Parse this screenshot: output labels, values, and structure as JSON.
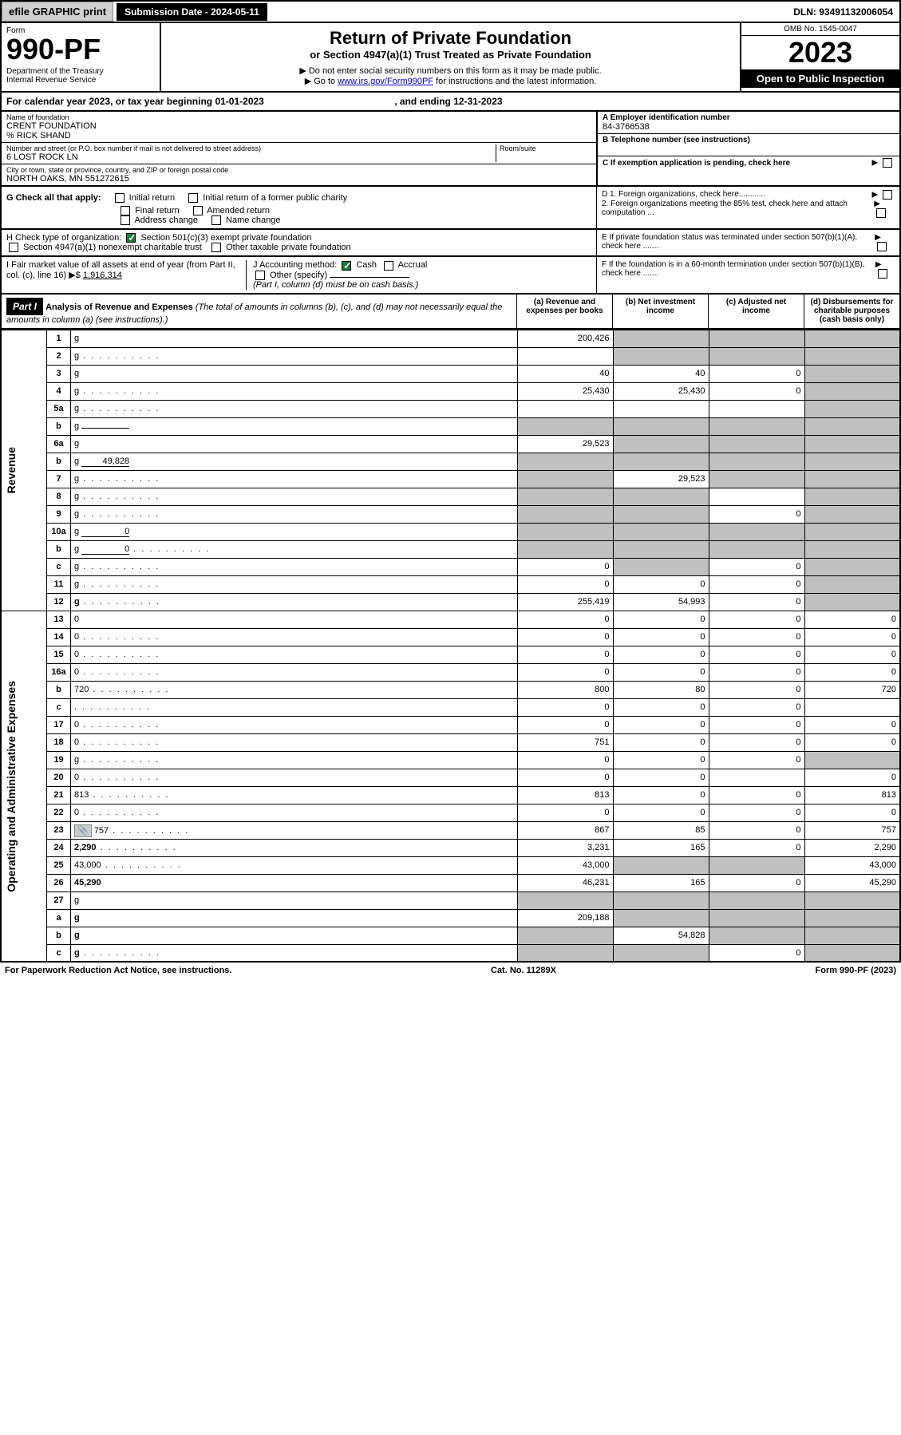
{
  "top": {
    "efile": "efile GRAPHIC print",
    "submission": "Submission Date - 2024-05-11",
    "dln": "DLN: 93491132006054"
  },
  "header": {
    "form_label": "Form",
    "form_number": "990-PF",
    "dept": "Department of the Treasury\nInternal Revenue Service",
    "title": "Return of Private Foundation",
    "subtitle": "or Section 4947(a)(1) Trust Treated as Private Foundation",
    "instr1": "▶ Do not enter social security numbers on this form as it may be made public.",
    "instr2": "▶ Go to ",
    "instr_link": "www.irs.gov/Form990PF",
    "instr3": " for instructions and the latest information.",
    "omb": "OMB No. 1545-0047",
    "year": "2023",
    "open": "Open to Public Inspection"
  },
  "cal_year": {
    "text1": "For calendar year 2023, or tax year beginning ",
    "begin": "01-01-2023",
    "text2": ", and ending ",
    "end": "12-31-2023"
  },
  "info": {
    "name_label": "Name of foundation",
    "name": "CRENT FOUNDATION",
    "care_of": "% RICK SHAND",
    "addr_label": "Number and street (or P.O. box number if mail is not delivered to street address)",
    "addr": "6 LOST ROCK LN",
    "room_label": "Room/suite",
    "city_label": "City or town, state or province, country, and ZIP or foreign postal code",
    "city": "NORTH OAKS, MN 551272615",
    "ein_label": "A Employer identification number",
    "ein": "84-3766538",
    "phone_label": "B Telephone number (see instructions)",
    "c_label": "C If exemption application is pending, check here",
    "d1": "D 1. Foreign organizations, check here............",
    "d2": "2. Foreign organizations meeting the 85% test, check here and attach computation ...",
    "e": "E If private foundation status was terminated under section 507(b)(1)(A), check here .......",
    "f": "F If the foundation is in a 60-month termination under section 507(b)(1)(B), check here .......",
    "g_label": "G Check all that apply:",
    "g_opts": [
      "Initial return",
      "Initial return of a former public charity",
      "Final return",
      "Amended return",
      "Address change",
      "Name change"
    ],
    "h_label": "H Check type of organization:",
    "h1": "Section 501(c)(3) exempt private foundation",
    "h2": "Section 4947(a)(1) nonexempt charitable trust",
    "h3": "Other taxable private foundation",
    "i_label": "I Fair market value of all assets at end of year (from Part II, col. (c), line 16) ▶$ ",
    "i_val": "1,916,314",
    "j_label": "J Accounting method:",
    "j_cash": "Cash",
    "j_accrual": "Accrual",
    "j_other": "Other (specify)",
    "j_note": "(Part I, column (d) must be on cash basis.)"
  },
  "part1": {
    "label": "Part I",
    "title": "Analysis of Revenue and Expenses",
    "note": "(The total of amounts in columns (b), (c), and (d) may not necessarily equal the amounts in column (a) (see instructions).)",
    "col_a": "(a) Revenue and expenses per books",
    "col_b": "(b) Net investment income",
    "col_c": "(c) Adjusted net income",
    "col_d": "(d) Disbursements for charitable purposes (cash basis only)"
  },
  "sections": {
    "revenue": "Revenue",
    "expenses": "Operating and Administrative Expenses"
  },
  "rows": [
    {
      "n": "1",
      "d": "g",
      "a": "200,426",
      "b": "g",
      "c": "g"
    },
    {
      "n": "2",
      "d": "g",
      "dots": true,
      "a": "",
      "b": "g",
      "c": "g"
    },
    {
      "n": "3",
      "d": "g",
      "a": "40",
      "b": "40",
      "c": "0"
    },
    {
      "n": "4",
      "d": "g",
      "dots": true,
      "a": "25,430",
      "b": "25,430",
      "c": "0"
    },
    {
      "n": "5a",
      "d": "g",
      "dots": true,
      "a": "",
      "b": "",
      "c": ""
    },
    {
      "n": "b",
      "d": "g",
      "a": "g",
      "b": "g",
      "c": "g",
      "inline": ""
    },
    {
      "n": "6a",
      "d": "g",
      "a": "29,523",
      "b": "g",
      "c": "g"
    },
    {
      "n": "b",
      "d": "g",
      "a": "g",
      "b": "g",
      "c": "g",
      "inline": "49,828"
    },
    {
      "n": "7",
      "d": "g",
      "dots": true,
      "a": "g",
      "b": "29,523",
      "c": "g"
    },
    {
      "n": "8",
      "d": "g",
      "dots": true,
      "a": "g",
      "b": "g",
      "c": ""
    },
    {
      "n": "9",
      "d": "g",
      "dots": true,
      "a": "g",
      "b": "g",
      "c": "0"
    },
    {
      "n": "10a",
      "d": "g",
      "a": "g",
      "b": "g",
      "c": "g",
      "inline": "0"
    },
    {
      "n": "b",
      "d": "g",
      "dots": true,
      "a": "g",
      "b": "g",
      "c": "g",
      "inline": "0"
    },
    {
      "n": "c",
      "d": "g",
      "dots": true,
      "a": "0",
      "b": "g",
      "c": "0"
    },
    {
      "n": "11",
      "d": "g",
      "dots": true,
      "a": "0",
      "b": "0",
      "c": "0"
    },
    {
      "n": "12",
      "d": "g",
      "dots": true,
      "bold": true,
      "a": "255,419",
      "b": "54,993",
      "c": "0"
    },
    {
      "n": "13",
      "d": "0",
      "a": "0",
      "b": "0",
      "c": "0"
    },
    {
      "n": "14",
      "d": "0",
      "dots": true,
      "a": "0",
      "b": "0",
      "c": "0"
    },
    {
      "n": "15",
      "d": "0",
      "dots": true,
      "a": "0",
      "b": "0",
      "c": "0"
    },
    {
      "n": "16a",
      "d": "0",
      "dots": true,
      "a": "0",
      "b": "0",
      "c": "0"
    },
    {
      "n": "b",
      "d": "720",
      "dots": true,
      "a": "800",
      "b": "80",
      "c": "0"
    },
    {
      "n": "c",
      "d": "",
      "dots": true,
      "a": "0",
      "b": "0",
      "c": "0"
    },
    {
      "n": "17",
      "d": "0",
      "dots": true,
      "a": "0",
      "b": "0",
      "c": "0"
    },
    {
      "n": "18",
      "d": "0",
      "dots": true,
      "a": "751",
      "b": "0",
      "c": "0"
    },
    {
      "n": "19",
      "d": "g",
      "dots": true,
      "a": "0",
      "b": "0",
      "c": "0"
    },
    {
      "n": "20",
      "d": "0",
      "dots": true,
      "a": "0",
      "b": "0",
      "c": ""
    },
    {
      "n": "21",
      "d": "813",
      "dots": true,
      "a": "813",
      "b": "0",
      "c": "0"
    },
    {
      "n": "22",
      "d": "0",
      "dots": true,
      "a": "0",
      "b": "0",
      "c": "0"
    },
    {
      "n": "23",
      "d": "757",
      "dots": true,
      "icon": true,
      "a": "867",
      "b": "85",
      "c": "0"
    },
    {
      "n": "24",
      "d": "2,290",
      "dots": true,
      "bold": true,
      "a": "3,231",
      "b": "165",
      "c": "0"
    },
    {
      "n": "25",
      "d": "43,000",
      "dots": true,
      "a": "43,000",
      "b": "g",
      "c": "g"
    },
    {
      "n": "26",
      "d": "45,290",
      "bold": true,
      "a": "46,231",
      "b": "165",
      "c": "0"
    },
    {
      "n": "27",
      "d": "g",
      "a": "g",
      "b": "g",
      "c": "g"
    },
    {
      "n": "a",
      "d": "g",
      "bold": true,
      "a": "209,188",
      "b": "g",
      "c": "g"
    },
    {
      "n": "b",
      "d": "g",
      "bold": true,
      "a": "g",
      "b": "54,828",
      "c": "g"
    },
    {
      "n": "c",
      "d": "g",
      "dots": true,
      "bold": true,
      "a": "g",
      "b": "g",
      "c": "0"
    }
  ],
  "footer": {
    "left": "For Paperwork Reduction Act Notice, see instructions.",
    "center": "Cat. No. 11289X",
    "right": "Form 990-PF (2023)"
  }
}
